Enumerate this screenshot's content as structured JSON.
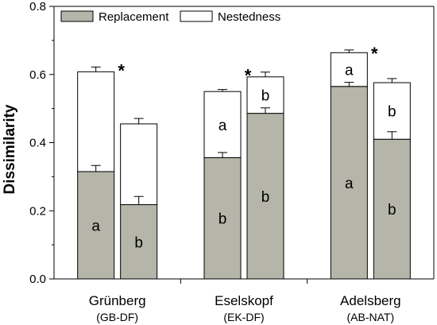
{
  "chart_data": {
    "type": "bar",
    "stacked": true,
    "title": "",
    "xlabel": "",
    "ylabel": "Dissimilarity",
    "ylim": [
      0,
      0.8
    ],
    "yticks": [
      "0.0",
      "0.2",
      "0.4",
      "0.6",
      "0.8"
    ],
    "groups": [
      {
        "name": "Grünberg",
        "sub": "(GB-DF)",
        "star": "*"
      },
      {
        "name": "Eselskopf",
        "sub": "(EK-DF)",
        "star": "*"
      },
      {
        "name": "Adelsberg",
        "sub": "(AB-NAT)",
        "star": "*"
      }
    ],
    "series": [
      {
        "name": "Replacement",
        "color": "#b5b5a9"
      },
      {
        "name": "Nestedness",
        "color": "#ffffff"
      }
    ],
    "bars": [
      {
        "group": 0,
        "replacement": 0.315,
        "replacement_err": 0.018,
        "total": 0.608,
        "total_err": 0.014,
        "rep_label": "a",
        "nest_label": ""
      },
      {
        "group": 0,
        "replacement": 0.218,
        "replacement_err": 0.024,
        "total": 0.455,
        "total_err": 0.016,
        "rep_label": "b",
        "nest_label": ""
      },
      {
        "group": 1,
        "replacement": 0.356,
        "replacement_err": 0.015,
        "total": 0.55,
        "total_err": 0.006,
        "rep_label": "b",
        "nest_label": "a"
      },
      {
        "group": 1,
        "replacement": 0.486,
        "replacement_err": 0.016,
        "total": 0.593,
        "total_err": 0.014,
        "rep_label": "b",
        "nest_label": "b"
      },
      {
        "group": 2,
        "replacement": 0.565,
        "replacement_err": 0.012,
        "total": 0.664,
        "total_err": 0.008,
        "rep_label": "a",
        "nest_label": "a"
      },
      {
        "group": 2,
        "replacement": 0.41,
        "replacement_err": 0.022,
        "total": 0.576,
        "total_err": 0.012,
        "rep_label": "b",
        "nest_label": "b"
      }
    ],
    "grid": false,
    "legend": "top-left, horizontal"
  }
}
